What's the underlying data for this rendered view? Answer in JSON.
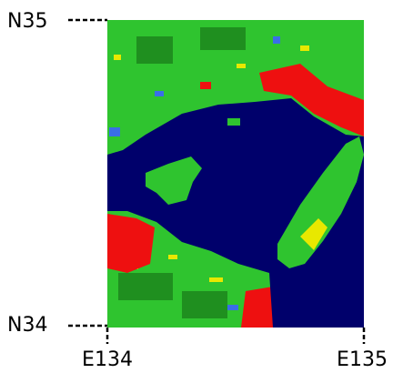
{
  "latitude_labels": [
    "N35",
    "N34"
  ],
  "longitude_labels": [
    "E134",
    "E135"
  ]
}
